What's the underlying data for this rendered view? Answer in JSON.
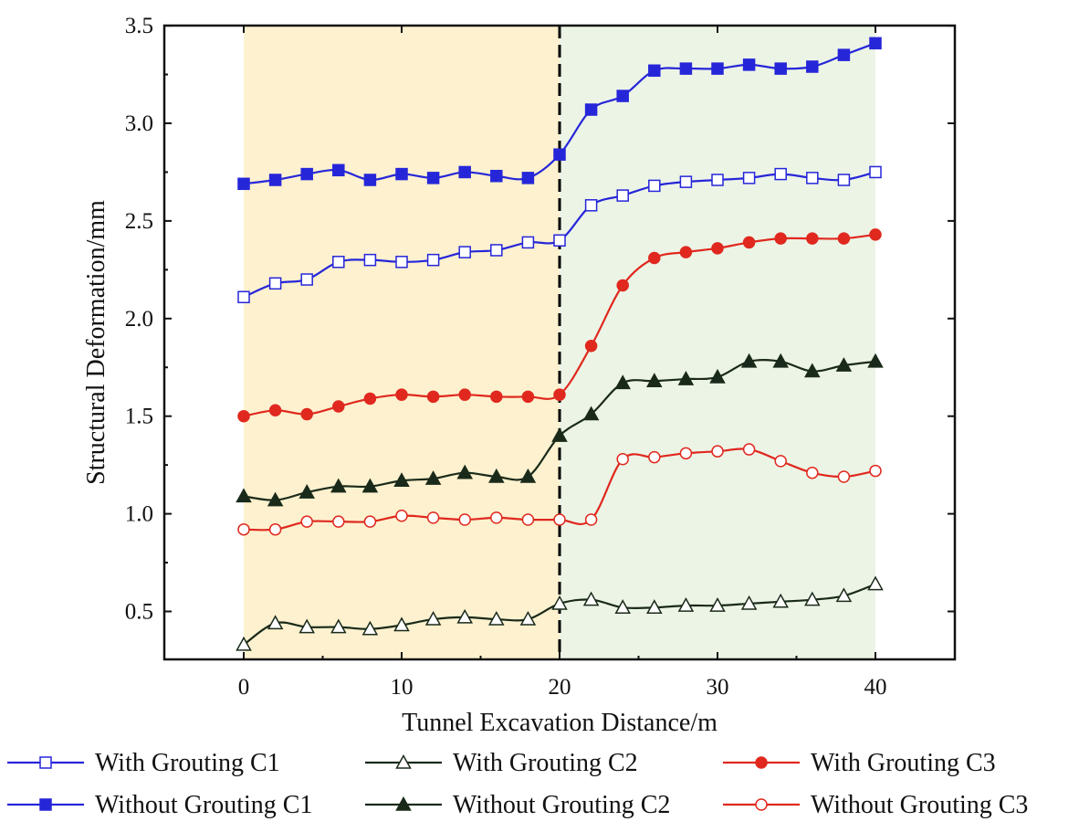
{
  "chart_data": {
    "type": "line",
    "title": "",
    "xlabel": "Tunnel Excavation Distance/m",
    "ylabel": "Structural Deformation/mm",
    "xlim": [
      -5,
      45
    ],
    "ylim": [
      0.24,
      3.5
    ],
    "x_ticks": [
      0,
      10,
      20,
      30,
      40
    ],
    "y_ticks": [
      0.5,
      1.0,
      1.5,
      2.0,
      2.5,
      3.0,
      3.5
    ],
    "x_tick_labels": [
      "0",
      "10",
      "20",
      "30",
      "40"
    ],
    "y_tick_labels": [
      "0.5",
      "1.0",
      "1.5",
      "2.0",
      "2.5",
      "3.0",
      "3.5"
    ],
    "grid": false,
    "legend_position": "bottom",
    "regions": [
      {
        "x_start": 0,
        "x_end": 20,
        "color": "#fdf1cf"
      },
      {
        "x_start": 20,
        "x_end": 40,
        "color": "#ecf4e6"
      }
    ],
    "reference_line": {
      "x": 20,
      "style": "dashed",
      "color": "#000000"
    },
    "x": [
      0,
      2,
      4,
      6,
      8,
      10,
      12,
      14,
      16,
      18,
      20,
      22,
      24,
      26,
      28,
      30,
      32,
      34,
      36,
      38,
      40
    ],
    "series": [
      {
        "name": "With Grouting C1",
        "color": "#2626d9",
        "marker": "square",
        "filled": false,
        "values": [
          2.11,
          2.18,
          2.2,
          2.29,
          2.3,
          2.29,
          2.3,
          2.34,
          2.35,
          2.39,
          2.4,
          2.58,
          2.63,
          2.68,
          2.7,
          2.71,
          2.72,
          2.74,
          2.72,
          2.71,
          2.75
        ]
      },
      {
        "name": "With Grouting C2",
        "color": "#1a2a1a",
        "marker": "triangle",
        "filled": false,
        "values": [
          0.33,
          0.44,
          0.42,
          0.42,
          0.41,
          0.43,
          0.46,
          0.47,
          0.46,
          0.46,
          0.54,
          0.56,
          0.52,
          0.52,
          0.53,
          0.53,
          0.54,
          0.55,
          0.56,
          0.58,
          0.64
        ]
      },
      {
        "name": "With Grouting C3",
        "color": "#e0281e",
        "marker": "circle",
        "filled": true,
        "values": [
          1.5,
          1.53,
          1.51,
          1.55,
          1.59,
          1.61,
          1.6,
          1.61,
          1.6,
          1.6,
          1.61,
          1.86,
          2.17,
          2.31,
          2.34,
          2.36,
          2.39,
          2.41,
          2.41,
          2.41,
          2.43
        ]
      },
      {
        "name": "Without Grouting C1",
        "color": "#2626d9",
        "marker": "square",
        "filled": true,
        "values": [
          2.69,
          2.71,
          2.74,
          2.76,
          2.71,
          2.74,
          2.72,
          2.75,
          2.73,
          2.72,
          2.84,
          3.07,
          3.14,
          3.27,
          3.28,
          3.28,
          3.3,
          3.28,
          3.29,
          3.35,
          3.41
        ]
      },
      {
        "name": "Without Grouting C2",
        "color": "#1a2a1a",
        "marker": "triangle",
        "filled": true,
        "values": [
          1.09,
          1.07,
          1.11,
          1.14,
          1.14,
          1.17,
          1.18,
          1.21,
          1.19,
          1.19,
          1.4,
          1.51,
          1.67,
          1.68,
          1.69,
          1.7,
          1.78,
          1.78,
          1.73,
          1.76,
          1.78
        ]
      },
      {
        "name": "Without Grouting C3",
        "color": "#e0281e",
        "marker": "circle",
        "filled": false,
        "values": [
          0.92,
          0.92,
          0.96,
          0.96,
          0.96,
          0.99,
          0.98,
          0.97,
          0.98,
          0.97,
          0.97,
          0.97,
          1.28,
          1.29,
          1.31,
          1.32,
          1.33,
          1.27,
          1.21,
          1.19,
          1.22
        ]
      }
    ]
  }
}
